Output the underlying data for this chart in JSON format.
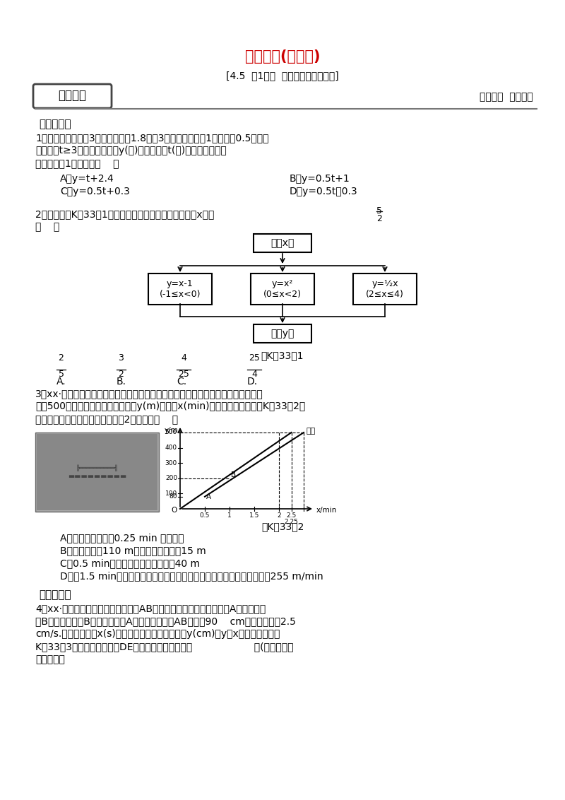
{
  "title": "课时作业(三十三)",
  "subtitle": "[4.5  第1课时  一次函数与方案决策]",
  "section_label": "课堂达标",
  "right_label": "夯实基础  过关检测",
  "section1": "一、选择题",
  "q1_line1": "1．某地打长途电话3分钟之内收费1.8元，3分钟以后每增加1分钟加收0.5元，当",
  "q1_line2": "通话时间t≥3分钟时，电话费y(元)与通话时间t(分)之间的表达式为",
  "q1_line3": "链接听课例1归纳总结（    ）",
  "q1_A": "A．y=t+2.4",
  "q1_B": "B．y=0.5t+1",
  "q1_C": "C．y=0.5t+0.3",
  "q1_D": "D．y=0.5t－0.3",
  "q2_line1": "2．根据如图K－33－1所示的程序计算函数值，若输入的x值为",
  "q2_frac_num": "5",
  "q2_frac_den": "2",
  "q2_line2": "，则输出的函数值为",
  "q2_line3": "（    ）",
  "flowchart_top": "输入x值",
  "flowchart_left": "y=x-1\n(-1≤x<0)",
  "flowchart_mid": "y=x²\n(0≤x<2)",
  "flowchart_right": "y=½x\n(2≤x≤4)",
  "flowchart_bottom": "输出y值",
  "fig1_label": "图K－33－1",
  "q2_choices": [
    {
      "num": "2",
      "den": "5",
      "letter": "A."
    },
    {
      "num": "3",
      "den": "2",
      "letter": "B."
    },
    {
      "num": "4",
      "den": "25",
      "letter": "C."
    },
    {
      "num": "25",
      "den": "4",
      "letter": "D."
    }
  ],
  "q3_line1": "3．xx·聊城端午节前夕，在东昌湖举行的第七届全民健身运动会龙舟比赛中，甲、乙",
  "q3_line2": "两队500米的赛道上，所划行的路程y(m)与时间x(min)之前的函数关系如图K－33－2所",
  "q3_line3": "示，下列说法错误的是链接听课例2归纳总结（    ）",
  "fig2_label": "图K－33－2",
  "q3_A": "A．乙队比甲队提前0.25 min 到达终点",
  "q3_B": "B．当乙队划行110 m时，此时落后甲队15 m",
  "q3_C": "C．0.5 min后，乙队比甲队每分钟快40 m",
  "q3_D": "D．自1.5 min开始，甲队若要与乙队同时到达终点，甲队的速度需提高到255 m/min",
  "section2": "二、填空题",
  "q4_line1": "4．xx·达州甲、乙两动点分别从线段AB的两个端点同时出发，甲从点A出发，向终",
  "q4_line2": "点B运动，乙从点B出发，向终点A运动．已知线段AB的长为90    cm，甲的速度为2.5",
  "q4_line3": "cm/s.设运动时间为x(s)，甲、乙两点之间的距离为y(cm)，y与x的函数图象如图",
  "q4_line4": "K－33－3所示，则图中线段DE所表示的函数表达式为                    ．(写出自变量",
  "q4_line5": "取值范围）",
  "bg_color": "#ffffff",
  "title_color": "#cc0000",
  "text_color": "#000000"
}
